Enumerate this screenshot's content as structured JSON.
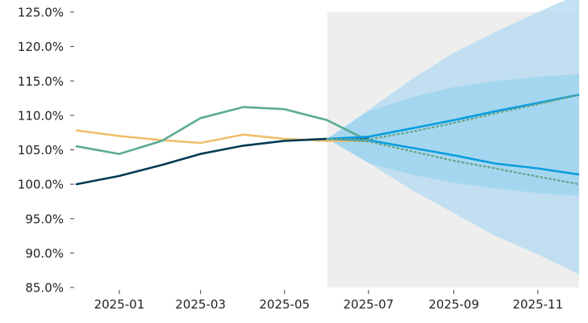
{
  "chart_data": {
    "type": "line",
    "title": "",
    "xlabel": "",
    "ylabel": "",
    "grid": false,
    "legend": "none",
    "x_ticks": [
      "2025-01",
      "2025-03",
      "2025-05",
      "2025-07",
      "2025-09",
      "2025-11"
    ],
    "x_ticks_dates": [
      "2025-01-01",
      "2025-03-01",
      "2025-05-01",
      "2025-07-01",
      "2025-09-01",
      "2025-11-01"
    ],
    "xlim": [
      "2024-12-01",
      "2025-12-01"
    ],
    "y_ticks": [
      "85.0%",
      "90.0%",
      "95.0%",
      "100.0%",
      "105.0%",
      "110.0%",
      "115.0%",
      "120.0%",
      "125.0%"
    ],
    "y_tick_values": [
      85,
      90,
      95,
      100,
      105,
      110,
      115,
      120,
      125
    ],
    "ylim": [
      85,
      125
    ],
    "forecast_region": {
      "start": "2025-06-01",
      "end": "2025-12-01",
      "color": "#eeeeee"
    },
    "series": [
      {
        "color": "#003a54",
        "x": [
          "2024-12-01",
          "2025-01-01",
          "2025-02-01",
          "2025-03-01",
          "2025-04-01",
          "2025-05-01",
          "2025-06-01",
          "2025-07-01"
        ],
        "values": [
          100.0,
          101.2,
          102.8,
          104.4,
          105.6,
          106.3,
          106.6,
          106.8
        ]
      },
      {
        "color": "#5aaa95",
        "x": [
          "2024-12-01",
          "2025-01-01",
          "2025-02-01",
          "2025-03-01",
          "2025-04-01",
          "2025-05-01",
          "2025-06-01",
          "2025-07-01"
        ],
        "values": [
          105.5,
          104.4,
          106.3,
          109.6,
          111.2,
          110.9,
          109.3,
          106.3
        ]
      },
      {
        "color": "#f0be6c",
        "x": [
          "2024-12-01",
          "2025-01-01",
          "2025-02-01",
          "2025-03-01",
          "2025-04-01",
          "2025-05-01",
          "2025-06-01",
          "2025-07-01"
        ],
        "values": [
          107.8,
          107.0,
          106.4,
          106.0,
          107.2,
          106.6,
          106.3,
          106.3
        ]
      }
    ],
    "forecast": {
      "x": [
        "2025-06-01",
        "2025-07-01",
        "2025-08-01",
        "2025-09-01",
        "2025-10-01",
        "2025-11-01",
        "2025-12-01"
      ],
      "line_color": "#0a9de0",
      "upper_line": [
        106.6,
        106.9,
        108.1,
        109.3,
        110.6,
        111.8,
        113.0
      ],
      "lower_line": [
        106.6,
        106.4,
        105.3,
        104.2,
        103.0,
        102.3,
        101.4
      ],
      "dotted_color": "#6aa58d",
      "dotted_upper": [
        106.6,
        106.5,
        107.6,
        108.9,
        110.3,
        111.6,
        113.0
      ],
      "dotted_lower": [
        106.6,
        106.2,
        104.8,
        103.4,
        102.3,
        101.1,
        100.0
      ],
      "outer_band_color": "#b8dcf0",
      "outer_band": {
        "upper": [
          106.6,
          110.8,
          115.2,
          119.1,
          122.1,
          125.0,
          127.6
        ],
        "lower": [
          106.6,
          103.1,
          99.2,
          95.8,
          92.5,
          89.8,
          86.9
        ]
      },
      "inner_band_color": "#9fd6ef",
      "inner_band": {
        "upper": [
          106.6,
          110.6,
          112.6,
          114.1,
          115.0,
          115.6,
          116.0
        ],
        "lower": [
          106.6,
          103.1,
          101.4,
          100.2,
          99.4,
          98.7,
          98.3
        ]
      }
    }
  }
}
